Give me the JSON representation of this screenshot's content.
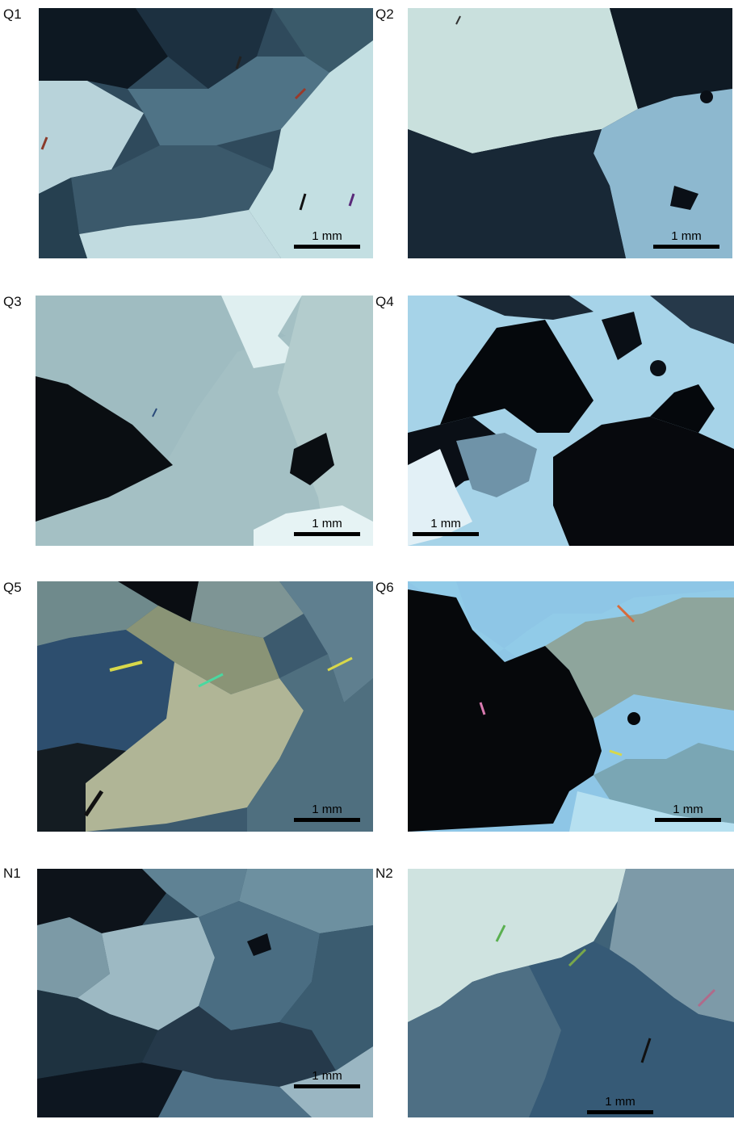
{
  "colors": {
    "black_grain": "#0a0f16",
    "dark_blue_grain": "#223748",
    "mid_blue_grain": "#5f8195",
    "light_blue_grain": "#a9c8d0",
    "bright_grain": "#d8ecec",
    "sky_blue_grain": "#9fd1ea",
    "tan_grain": "#8f9a84",
    "scalebar": "#000000"
  },
  "panels": [
    {
      "label": "Q1",
      "scalebar": "1 mm"
    },
    {
      "label": "Q2",
      "scalebar": "1 mm"
    },
    {
      "label": "Q3",
      "scalebar": "1 mm"
    },
    {
      "label": "Q4",
      "scalebar": "1 mm"
    },
    {
      "label": "Q5",
      "scalebar": "1 mm"
    },
    {
      "label": "Q6",
      "scalebar": "1 mm"
    },
    {
      "label": "N1",
      "scalebar": "1 mm"
    },
    {
      "label": "N2",
      "scalebar": "1 mm"
    }
  ]
}
